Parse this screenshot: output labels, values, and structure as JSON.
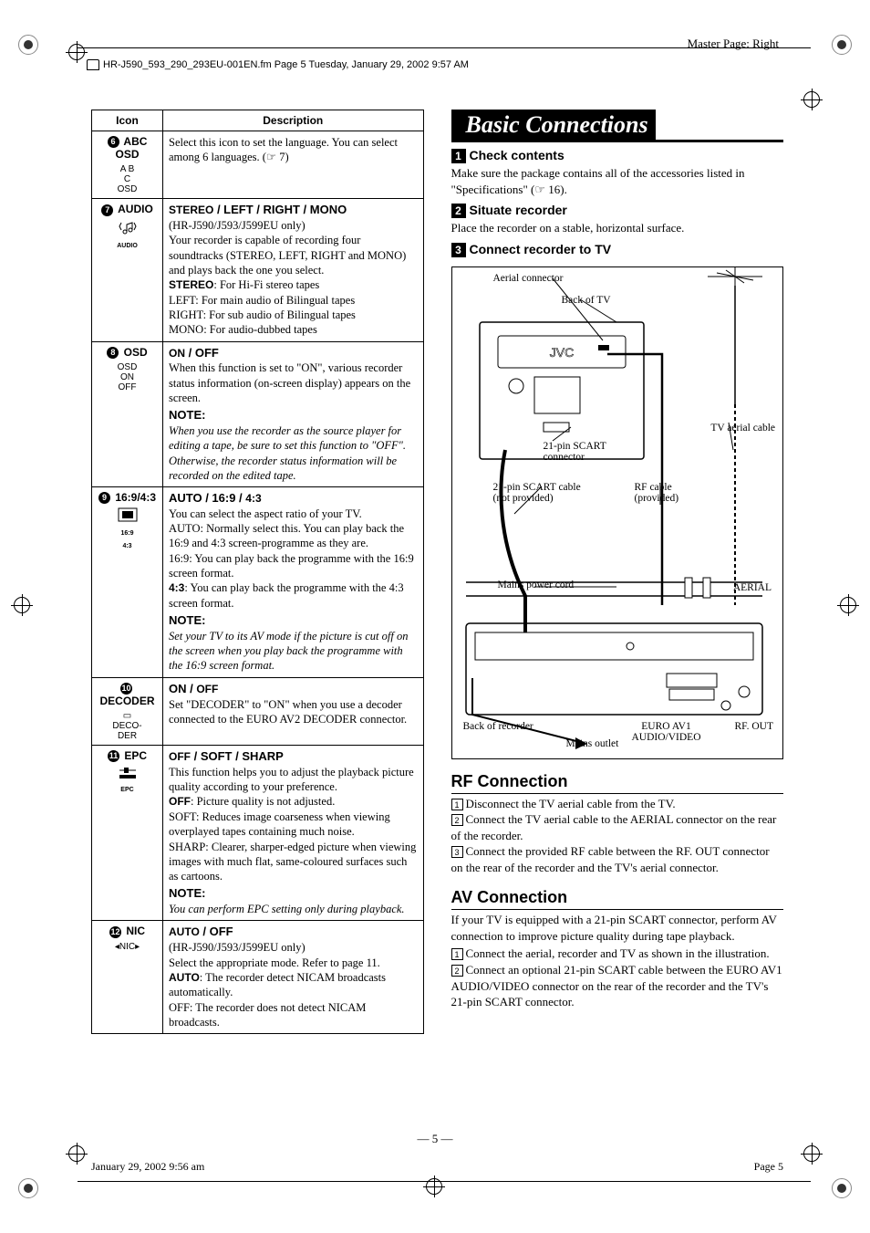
{
  "header": {
    "file_line": "HR-J590_593_290_293EU-001EN.fm  Page 5  Tuesday, January 29, 2002  9:57 AM",
    "master_page": "Master Page: Right"
  },
  "table": {
    "head_icon": "Icon",
    "head_desc": "Description",
    "rows": [
      {
        "num": "6",
        "label": "ABC OSD",
        "glyph": "A  B\nC\nOSD",
        "desc_html": "Select this icon to set the language. You can select among 6 languages. (☞ 7)"
      },
      {
        "num": "7",
        "label": "AUDIO",
        "glyph_svg": "audio",
        "desc_lines": [
          {
            "b": "STEREO",
            "t": " / LEFT / RIGHT / MONO"
          },
          {
            "t": "(HR-J590/J593/J599EU only)"
          },
          {
            "t": "Your recorder is capable of recording four soundtracks (STEREO, LEFT, RIGHT and MONO) and plays back the one you select."
          },
          {
            "b": "STEREO",
            "t": ": For Hi-Fi stereo tapes"
          },
          {
            "t": "LEFT: For main audio of Bilingual tapes"
          },
          {
            "t": "RIGHT: For sub audio of Bilingual tapes"
          },
          {
            "t": "MONO: For audio-dubbed tapes"
          }
        ]
      },
      {
        "num": "8",
        "label": "OSD",
        "glyph": "OSD\nON\nOFF",
        "desc_lines": [
          {
            "b": "ON",
            "t": " / OFF"
          },
          {
            "t": "When this function is set to \"ON\", various recorder status information (on-screen display) appears on the screen."
          }
        ],
        "note": "NOTE:",
        "note_body": "When you use the recorder as the source player for editing a tape, be sure to set this function to \"OFF\". Otherwise, the recorder status information will be recorded on the edited tape."
      },
      {
        "num": "9",
        "label": "16:9/4:3",
        "glyph_svg": "aspect",
        "desc_lines": [
          {
            "t": "AUTO / 16:9 / ",
            "b_after": "4:3"
          },
          {
            "t": "You can select the aspect ratio of your TV."
          },
          {
            "t": "AUTO: Normally select this. You can play back the 16:9 and 4:3 screen-programme as they are."
          },
          {
            "t": "16:9: You can play back the programme with the 16:9 screen format."
          },
          {
            "b": "4:3",
            "t": ": You can play back the programme with the 4:3 screen format."
          }
        ],
        "note": "NOTE:",
        "note_body": "Set your TV to its AV mode if the picture is cut off on the screen when you play back the programme with the 16:9 screen format."
      },
      {
        "num": "10",
        "label": "DECODER",
        "glyph": "▭\nDECO-\nDER",
        "desc_lines": [
          {
            "t": "ON / ",
            "b_after": "OFF"
          },
          {
            "t": "Set \"DECODER\" to \"ON\" when you use a decoder connected to the EURO AV2 DECODER connector."
          }
        ]
      },
      {
        "num": "11",
        "label": "EPC",
        "glyph_svg": "epc",
        "desc_lines": [
          {
            "b": "OFF",
            "t": " / SOFT / SHARP"
          },
          {
            "t": "This function helps you to adjust the playback picture quality according to your preference."
          },
          {
            "b": "OFF",
            "t": ": Picture quality is not adjusted."
          },
          {
            "t": "SOFT: Reduces image coarseness when viewing overplayed tapes containing much noise."
          },
          {
            "t": "SHARP: Clearer, sharper-edged picture when viewing images with much flat, same-coloured surfaces such as cartoons."
          }
        ],
        "note": "NOTE:",
        "note_body": "You can perform EPC setting only during playback."
      },
      {
        "num": "12",
        "label": "NIC",
        "glyph": "◂NIC▸",
        "desc_lines": [
          {
            "b": "AUTO",
            "t": " / OFF"
          },
          {
            "t": "(HR-J590/J593/J599EU only)"
          },
          {
            "t": "Select the appropriate mode. Refer to page 11."
          },
          {
            "b": "AUTO",
            "t": ": The recorder detect NICAM broadcasts automatically."
          },
          {
            "t": "OFF: The recorder does not detect NICAM broadcasts."
          }
        ]
      }
    ]
  },
  "right": {
    "section_title": "Basic Connections",
    "steps": [
      {
        "n": "1",
        "label": "Check contents",
        "body": "Make sure the package contains all of the accessories listed in \"Specifications\" (☞ 16)."
      },
      {
        "n": "2",
        "label": "Situate recorder",
        "body": "Place the recorder on a stable, horizontal surface."
      },
      {
        "n": "3",
        "label": "Connect recorder to TV",
        "body": ""
      }
    ],
    "diagram": {
      "labels": {
        "aerial_connector": "Aerial connector",
        "back_of_tv": "Back of TV",
        "tv_aerial_cable": "TV aerial cable",
        "scart_21pin_connector": "21-pin SCART connector",
        "scart_cable": "21-pin SCART cable (not provided)",
        "rf_cable": "RF cable (provided)",
        "mains_power_cord": "Mains power cord",
        "aerial": "AERIAL",
        "back_of_recorder": "Back of recorder",
        "euro_av1": "EURO AV1 AUDIO/VIDEO",
        "rf_out": "RF. OUT",
        "mains_outlet": "Mains outlet"
      }
    },
    "rf": {
      "hdr": "RF Connection",
      "items": [
        "Disconnect the TV aerial cable from the TV.",
        "Connect the TV aerial cable to the AERIAL connector on the rear of the recorder.",
        "Connect the provided RF cable between the RF. OUT connector on the rear of the recorder and the TV's aerial connector."
      ]
    },
    "av": {
      "hdr": "AV Connection",
      "intro": "If your TV is equipped with a 21-pin SCART connector, perform AV connection to improve picture quality during tape playback.",
      "items": [
        "Connect the aerial, recorder and TV as shown in the illustration.",
        "Connect an optional 21-pin SCART cable between the EURO AV1 AUDIO/VIDEO connector on the rear of the recorder and the TV's 21-pin SCART connector."
      ]
    }
  },
  "footer": {
    "date": "January 29, 2002 9:56 am",
    "page": "Page 5",
    "center": "— 5 —"
  }
}
